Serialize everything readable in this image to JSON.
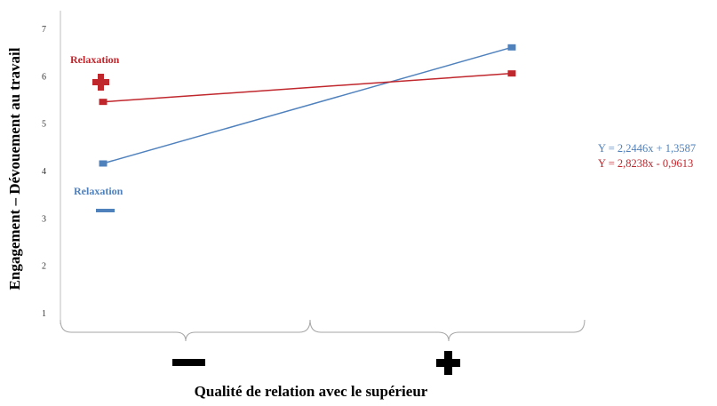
{
  "chart_data": {
    "type": "line",
    "ylabel": "Engagement – Dévouement au travail",
    "xlabel": "Qualité de relation avec le supérieur",
    "ylim": [
      0.5,
      7.3
    ],
    "y_ticks": [
      "1",
      "2",
      "3",
      "4",
      "5",
      "6",
      "7"
    ],
    "categories": [
      "−",
      "+"
    ],
    "series": [
      {
        "name": "Relaxation −",
        "color": "#4f81bd",
        "values": [
          4.15,
          6.6
        ],
        "equation": "Y = 2,2446x + 1,3587"
      },
      {
        "name": "Relaxation +",
        "color": "#c0272d",
        "values": [
          5.45,
          6.05
        ],
        "equation": "Y = 2,8238x - 0,9613"
      }
    ],
    "annotations": {
      "high_label": "Relaxation",
      "low_label": "Relaxation"
    },
    "grid": false
  }
}
